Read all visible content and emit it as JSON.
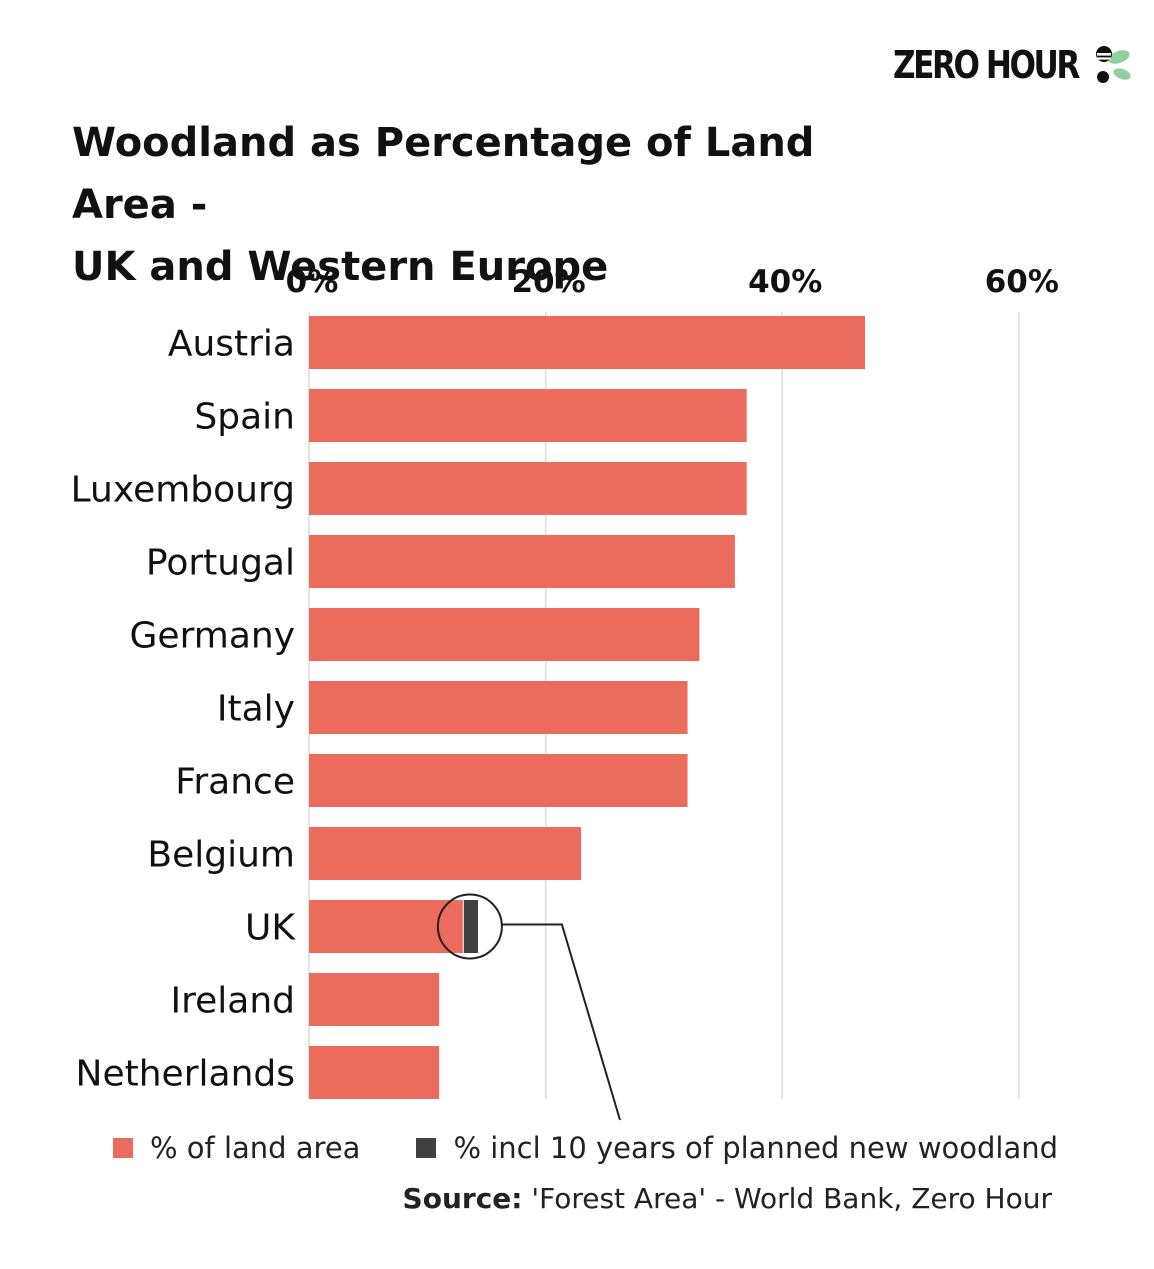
{
  "logo": {
    "text": "ZERO HOUR",
    "mark_icon": "bee-leaf-icon",
    "colors": {
      "dark": "#111111",
      "leaf": "#8fd19e"
    }
  },
  "title": {
    "line1": "Woodland as Percentage of Land Area -",
    "line2": "UK and Western Europe"
  },
  "chart_data": {
    "type": "bar",
    "orientation": "horizontal",
    "title": "Woodland as Percentage of Land Area - UK and Western Europe",
    "categories": [
      "Austria",
      "Spain",
      "Luxembourg",
      "Portugal",
      "Germany",
      "Italy",
      "France",
      "Belgium",
      "UK",
      "Ireland",
      "Netherlands"
    ],
    "series": [
      {
        "name": "% of land area",
        "color": "#eb6b5c",
        "values": [
          47.0,
          37.0,
          37.0,
          36.0,
          33.0,
          32.0,
          32.0,
          23.0,
          13.0,
          11.0,
          11.0
        ]
      },
      {
        "name": "% incl 10 years of planned new woodland",
        "color": "#404040",
        "values": [
          null,
          null,
          null,
          null,
          null,
          null,
          null,
          null,
          14.2,
          null,
          null
        ]
      }
    ],
    "xlim": [
      0,
      66
    ],
    "xticks": [
      0,
      20,
      40,
      60
    ],
    "xtick_labels": [
      "0%",
      "20%",
      "40%",
      "60%"
    ],
    "axis_position": "top",
    "grid": true,
    "annotation": {
      "target": "UK",
      "shape": "circle",
      "points_to": "legend"
    },
    "legend_position": "bottom"
  },
  "legend": {
    "items": [
      {
        "label": "% of land area",
        "color": "#eb6b5c"
      },
      {
        "label": "% incl 10 years of planned new woodland",
        "color": "#404040"
      }
    ]
  },
  "source": {
    "label": "Source:",
    "text": " 'Forest Area' - World Bank, Zero Hour"
  }
}
